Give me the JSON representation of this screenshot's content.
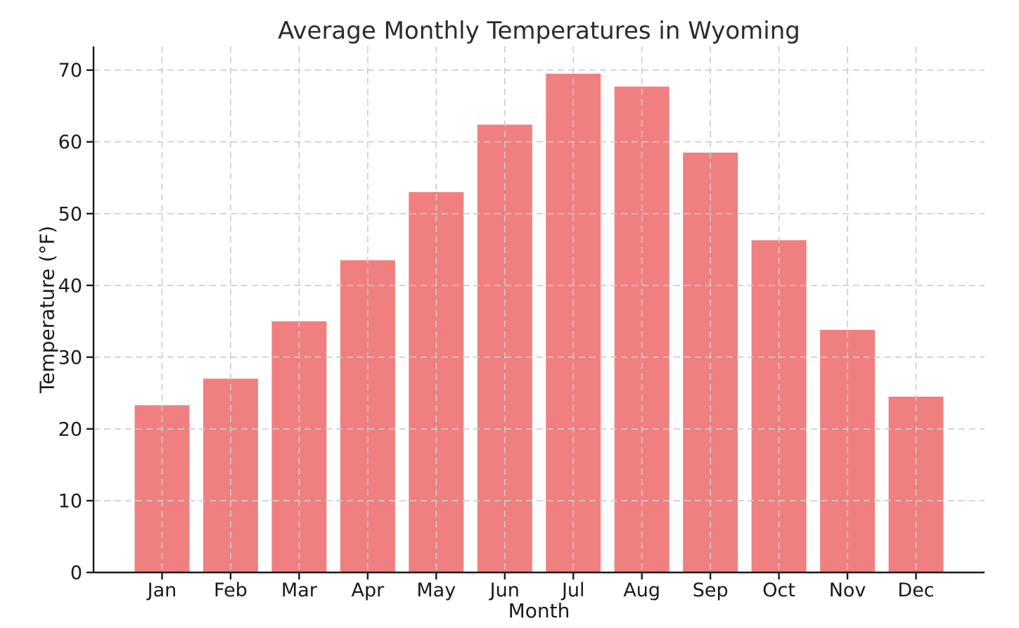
{
  "chart_data": {
    "type": "bar",
    "title": "Average Monthly Temperatures in Wyoming",
    "xlabel": "Month",
    "ylabel": "Temperature (°F)",
    "categories": [
      "Jan",
      "Feb",
      "Mar",
      "Apr",
      "May",
      "Jun",
      "Jul",
      "Aug",
      "Sep",
      "Oct",
      "Nov",
      "Dec"
    ],
    "values": [
      23.3,
      27.0,
      35.0,
      43.5,
      53.0,
      62.4,
      69.5,
      67.7,
      58.5,
      46.3,
      33.8,
      24.5
    ],
    "yticks": [
      0,
      10,
      20,
      30,
      40,
      50,
      60,
      70
    ],
    "ylim": [
      0,
      73.3
    ],
    "grid": true,
    "grid_style": "dashed",
    "grid_over_bars": true,
    "legend": "none",
    "colors": {
      "bar": "#F08080",
      "grid": "#cccccc",
      "axis": "#1a1a1a",
      "text": "#1a1a1a",
      "title": "#2b2b2b",
      "background": "#ffffff"
    }
  }
}
